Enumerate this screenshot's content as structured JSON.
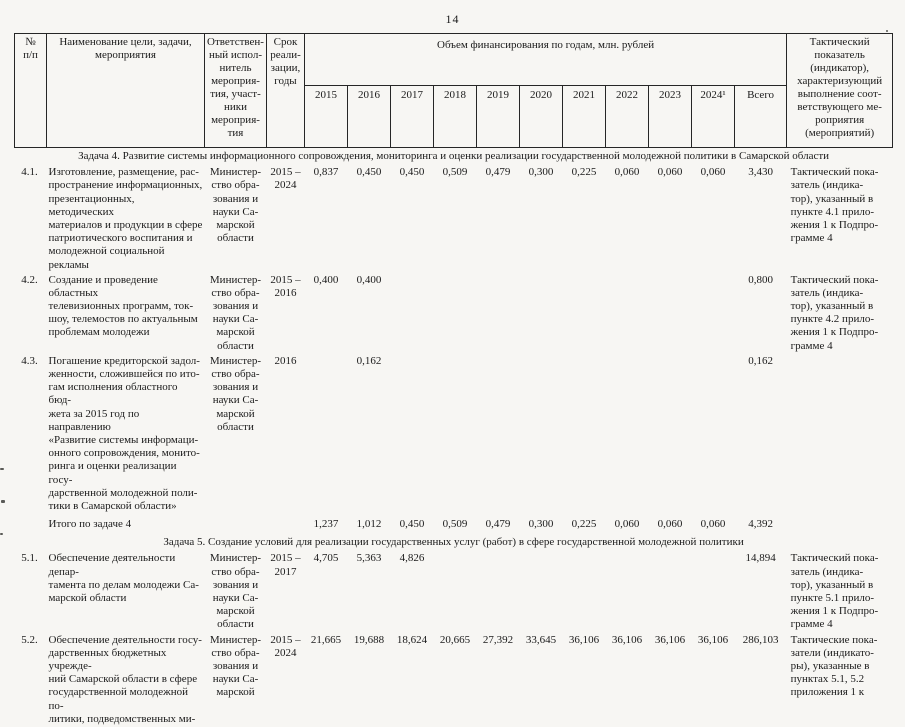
{
  "page": {
    "number": "14"
  },
  "table": {
    "header": {
      "col_num": "№\nп/п",
      "col_name": "Наименование цели, задачи,\nмероприятия",
      "col_resp": "Ответствен-\nный испол-\nнитель\nмероприя-\nтия, участ-\nники\nмероприя-\nтия",
      "col_term": "Срок\nреали-\nзации,\nгоды",
      "col_funding": "Объем финансирования по годам, млн. рублей",
      "years": [
        "2015",
        "2016",
        "2017",
        "2018",
        "2019",
        "2020",
        "2021",
        "2022",
        "2023",
        "2024¹"
      ],
      "col_total": "Всего",
      "col_indicator": "Тактический\nпоказатель\n(индикатор),\nхарактеризующий\nвыполнение соот-\nветствующего ме-\nроприятия\n(мероприятий)"
    },
    "rows": [
      {
        "type": "section",
        "label": "Задача 4. Развитие системы информационного сопровождения, мониторинга и оценки реализации государственной молодежной политики в Самарской области"
      },
      {
        "type": "item",
        "num": "4.1.",
        "name": "Изготовление, размещение, рас-\nпространение информационных,\nпрезентационных, методических\nматериалов и продукции в сфере\nпатриотического воспитания и\nмолодежной социальной рекламы",
        "resp": "Министер-\nство обра-\nзования и\nнауки Са-\nмарской\nобласти",
        "term": "2015 –\n2024",
        "values": [
          "0,837",
          "0,450",
          "0,450",
          "0,509",
          "0,479",
          "0,300",
          "0,225",
          "0,060",
          "0,060",
          "0,060"
        ],
        "total": "3,430",
        "indicator": "Тактический пока-\nзатель (индика-\nтор), указанный в\nпункте 4.1 прило-\nжения 1 к Подпро-\nграмме 4"
      },
      {
        "type": "item",
        "num": "4.2.",
        "name": "Создание и проведение областных\nтелевизионных программ, ток-\nшоу, телемостов по актуальным\nпроблемам молодежи",
        "resp": "Министер-\nство обра-\nзования и\nнауки Са-\nмарской\nобласти",
        "term": "2015 –\n2016",
        "values": [
          "0,400",
          "0,400",
          "",
          "",
          "",
          "",
          "",
          "",
          "",
          ""
        ],
        "total": "0,800",
        "indicator": "Тактический пока-\nзатель (индика-\nтор), указанный в\nпункте 4.2 прило-\nжения 1 к Подпро-\nграмме 4"
      },
      {
        "type": "item",
        "num": "4.3.",
        "name": "Погашение кредиторской задол-\nженности, сложившейся по ито-\nгам исполнения областного бюд-\nжета за 2015 год по направлению\n«Развитие системы информаци-\nонного сопровождения, монито-\nринга и оценки реализации госу-\nдарственной молодежной поли-\nтики в Самарской области»",
        "resp": "Министер-\nство обра-\nзования и\nнауки Са-\nмарской\nобласти",
        "term": "2016",
        "values": [
          "",
          "0,162",
          "",
          "",
          "",
          "",
          "",
          "",
          "",
          ""
        ],
        "total": "0,162",
        "indicator": ""
      },
      {
        "type": "total",
        "num": "",
        "name": "Итого по задаче 4",
        "resp": "",
        "term": "",
        "values": [
          "1,237",
          "1,012",
          "0,450",
          "0,509",
          "0,479",
          "0,300",
          "0,225",
          "0,060",
          "0,060",
          "0,060"
        ],
        "total": "4,392",
        "indicator": ""
      },
      {
        "type": "section",
        "label": "Задача 5. Создание условий для реализации государственных услуг (работ) в сфере государственной молодежной политики"
      },
      {
        "type": "item",
        "num": "5.1.",
        "name": "Обеспечение деятельности депар-\nтамента по делам молодежи Са-\nмарской области",
        "resp": "Министер-\nство обра-\nзования и\nнауки Са-\nмарской\nобласти",
        "term": "2015 –\n2017",
        "values": [
          "4,705",
          "5,363",
          "4,826",
          "",
          "",
          "",
          "",
          "",
          "",
          ""
        ],
        "total": "14,894",
        "indicator": "Тактический пока-\nзатель (индика-\nтор), указанный в\nпункте 5.1 прило-\nжения 1 к Подпро-\nграмме 4"
      },
      {
        "type": "item",
        "num": "5.2.",
        "name": "Обеспечение деятельности госу-\nдарственных бюджетных учрежде-\nний Самарской области в сфере\nгосударственной молодежной по-\nлитики, подведомственных ми-",
        "resp": "Министер-\nство обра-\nзования и\nнауки Са-\nмарской",
        "term": "2015 –\n2024",
        "values": [
          "21,665",
          "19,688",
          "18,624",
          "20,665",
          "27,392",
          "33,645",
          "36,106",
          "36,106",
          "36,106",
          "36,106"
        ],
        "total": "286,103",
        "indicator": "Тактические пока-\nзатели (индикато-\nры), указанные в\nпунктах 5.1, 5.2\nприложения 1 к"
      }
    ]
  }
}
